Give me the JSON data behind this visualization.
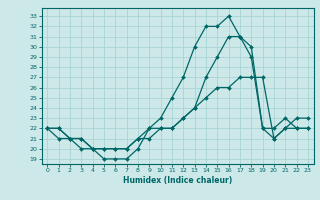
{
  "xlabel": "Humidex (Indice chaleur)",
  "ylabel": "",
  "background_color": "#cce8e8",
  "grid_color": "#aad4d4",
  "line_color": "#006666",
  "xlim": [
    -0.5,
    23.5
  ],
  "ylim": [
    18.5,
    33.8
  ],
  "yticks": [
    19,
    20,
    21,
    22,
    23,
    24,
    25,
    26,
    27,
    28,
    29,
    30,
    31,
    32,
    33
  ],
  "xticks": [
    0,
    1,
    2,
    3,
    4,
    5,
    6,
    7,
    8,
    9,
    10,
    11,
    12,
    13,
    14,
    15,
    16,
    17,
    18,
    19,
    20,
    21,
    22,
    23
  ],
  "line1": [
    22,
    22,
    21,
    20,
    20,
    19,
    19,
    19,
    20,
    22,
    23,
    25,
    27,
    30,
    32,
    32,
    33,
    31,
    29,
    22,
    22,
    23,
    22,
    22
  ],
  "line2": [
    22,
    22,
    21,
    21,
    20,
    20,
    20,
    20,
    21,
    21,
    22,
    22,
    23,
    24,
    27,
    29,
    31,
    31,
    30,
    22,
    21,
    22,
    23,
    23
  ],
  "line3": [
    22,
    21,
    21,
    21,
    20,
    20,
    20,
    20,
    21,
    22,
    22,
    22,
    23,
    24,
    25,
    26,
    26,
    27,
    27,
    27,
    21,
    22,
    22,
    22
  ]
}
